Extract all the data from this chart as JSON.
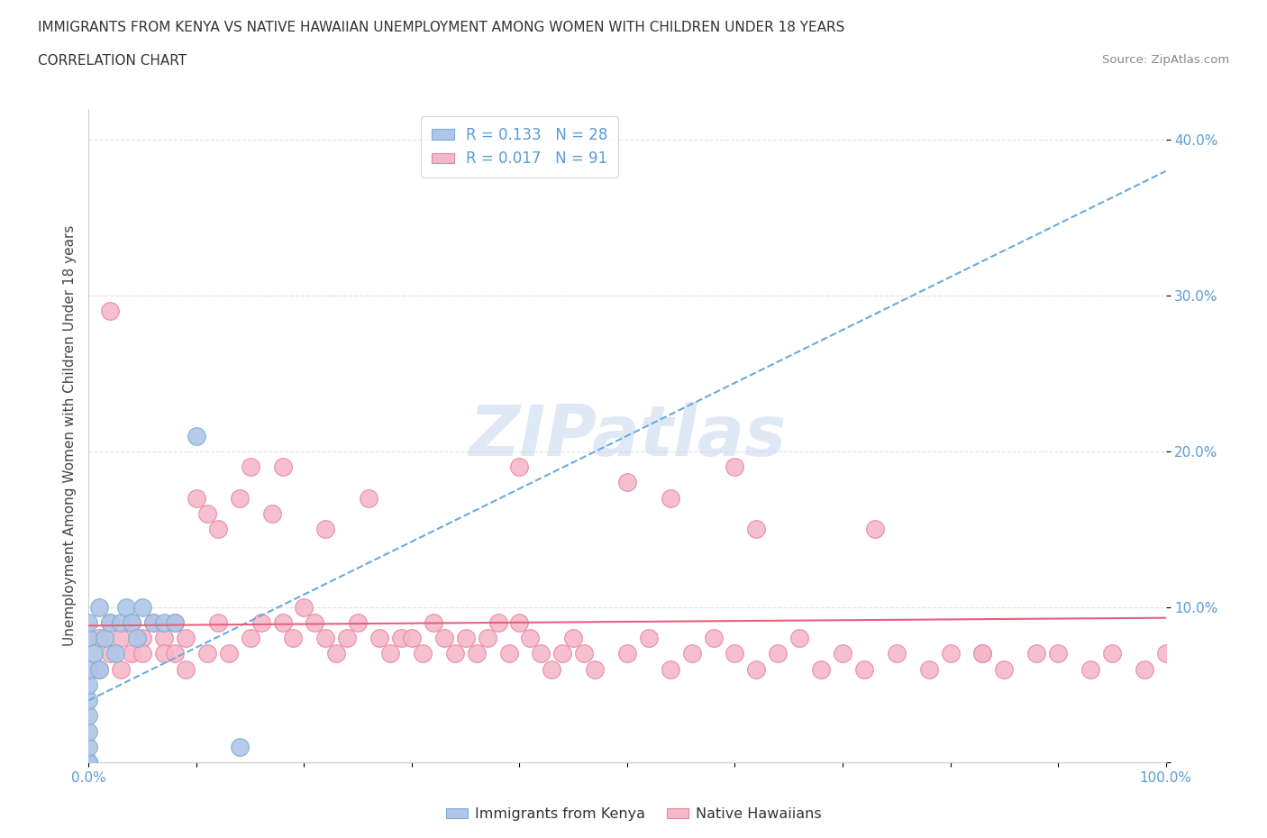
{
  "title_line1": "IMMIGRANTS FROM KENYA VS NATIVE HAWAIIAN UNEMPLOYMENT AMONG WOMEN WITH CHILDREN UNDER 18 YEARS",
  "title_line2": "CORRELATION CHART",
  "source_text": "Source: ZipAtlas.com",
  "ylabel": "Unemployment Among Women with Children Under 18 years",
  "xlim": [
    0.0,
    1.0
  ],
  "ylim": [
    0.0,
    0.42
  ],
  "x_ticks": [
    0.0,
    0.1,
    0.2,
    0.3,
    0.4,
    0.5,
    0.6,
    0.7,
    0.8,
    0.9,
    1.0
  ],
  "x_tick_labels": [
    "0.0%",
    "",
    "",
    "",
    "",
    "",
    "",
    "",
    "",
    "",
    "100.0%"
  ],
  "y_ticks": [
    0.0,
    0.1,
    0.2,
    0.3,
    0.4
  ],
  "y_tick_labels": [
    "",
    "10.0%",
    "20.0%",
    "30.0%",
    "40.0%"
  ],
  "watermark": "ZIPatlas",
  "kenya_color": "#aec6e8",
  "native_color": "#f5b8cb",
  "kenya_edge": "#7aadd4",
  "native_edge": "#e8839e",
  "trendline_kenya_color": "#6aaade",
  "trendline_native_color": "#e8607a",
  "background_color": "#ffffff",
  "grid_color": "#e0e0e0",
  "kenya_x": [
    0.0,
    0.0,
    0.0,
    0.0,
    0.0,
    0.0,
    0.0,
    0.0,
    0.0,
    0.0,
    0.0,
    0.0,
    0.005,
    0.01,
    0.01,
    0.015,
    0.02,
    0.025,
    0.03,
    0.035,
    0.04,
    0.045,
    0.05,
    0.06,
    0.07,
    0.08,
    0.1,
    0.14
  ],
  "kenya_y": [
    0.0,
    0.0,
    0.0,
    0.0,
    0.01,
    0.02,
    0.03,
    0.04,
    0.05,
    0.06,
    0.08,
    0.09,
    0.07,
    0.06,
    0.1,
    0.08,
    0.09,
    0.07,
    0.09,
    0.1,
    0.09,
    0.08,
    0.1,
    0.09,
    0.09,
    0.09,
    0.21,
    0.01
  ],
  "native_x": [
    0.01,
    0.01,
    0.02,
    0.02,
    0.03,
    0.03,
    0.04,
    0.04,
    0.05,
    0.05,
    0.06,
    0.07,
    0.07,
    0.08,
    0.08,
    0.09,
    0.09,
    0.1,
    0.11,
    0.11,
    0.12,
    0.12,
    0.13,
    0.14,
    0.15,
    0.16,
    0.17,
    0.18,
    0.19,
    0.2,
    0.21,
    0.22,
    0.22,
    0.23,
    0.24,
    0.25,
    0.26,
    0.27,
    0.28,
    0.29,
    0.3,
    0.31,
    0.32,
    0.33,
    0.34,
    0.35,
    0.36,
    0.37,
    0.38,
    0.39,
    0.4,
    0.41,
    0.42,
    0.43,
    0.44,
    0.45,
    0.46,
    0.47,
    0.5,
    0.52,
    0.54,
    0.56,
    0.58,
    0.6,
    0.62,
    0.64,
    0.66,
    0.68,
    0.7,
    0.72,
    0.75,
    0.78,
    0.8,
    0.83,
    0.85,
    0.88,
    0.9,
    0.93,
    0.95,
    0.98,
    1.0,
    0.02,
    0.15,
    0.18,
    0.4,
    0.5,
    0.54,
    0.6,
    0.62,
    0.73,
    0.83
  ],
  "native_y": [
    0.08,
    0.06,
    0.09,
    0.07,
    0.08,
    0.06,
    0.09,
    0.07,
    0.08,
    0.07,
    0.09,
    0.08,
    0.07,
    0.09,
    0.07,
    0.08,
    0.06,
    0.17,
    0.16,
    0.07,
    0.09,
    0.15,
    0.07,
    0.17,
    0.08,
    0.09,
    0.16,
    0.09,
    0.08,
    0.1,
    0.09,
    0.08,
    0.15,
    0.07,
    0.08,
    0.09,
    0.17,
    0.08,
    0.07,
    0.08,
    0.08,
    0.07,
    0.09,
    0.08,
    0.07,
    0.08,
    0.07,
    0.08,
    0.09,
    0.07,
    0.09,
    0.08,
    0.07,
    0.06,
    0.07,
    0.08,
    0.07,
    0.06,
    0.07,
    0.08,
    0.06,
    0.07,
    0.08,
    0.07,
    0.06,
    0.07,
    0.08,
    0.06,
    0.07,
    0.06,
    0.07,
    0.06,
    0.07,
    0.07,
    0.06,
    0.07,
    0.07,
    0.06,
    0.07,
    0.06,
    0.07,
    0.29,
    0.19,
    0.19,
    0.19,
    0.18,
    0.17,
    0.19,
    0.15,
    0.15,
    0.07
  ],
  "kenya_trend_x": [
    0.0,
    1.0
  ],
  "kenya_trend_y": [
    0.04,
    0.38
  ],
  "native_trend_x": [
    0.0,
    1.0
  ],
  "native_trend_y": [
    0.088,
    0.093
  ]
}
